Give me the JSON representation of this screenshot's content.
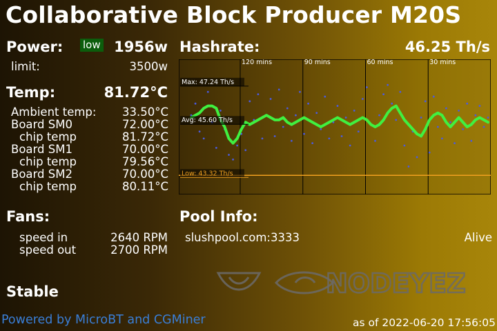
{
  "title": "Collaborative Block Producer M20S",
  "power": {
    "label": "Power:",
    "badge": "low",
    "value": "1956w",
    "limit_label": "limit:",
    "limit_value": "3500w"
  },
  "temp": {
    "label": "Temp:",
    "value": "81.72°C",
    "rows": [
      {
        "label": "Ambient temp:",
        "value": "33.50°C",
        "indent": false
      },
      {
        "label": "Board SM0",
        "value": "72.00°C",
        "indent": false
      },
      {
        "label": "chip temp",
        "value": "81.72°C",
        "indent": true
      },
      {
        "label": "Board SM1",
        "value": "70.00°C",
        "indent": false
      },
      {
        "label": "chip temp",
        "value": "79.56°C",
        "indent": true
      },
      {
        "label": "Board SM2",
        "value": "70.00°C",
        "indent": false
      },
      {
        "label": "chip temp",
        "value": "80.11°C",
        "indent": true
      }
    ]
  },
  "fans": {
    "label": "Fans:",
    "speed_in_label": "speed in",
    "speed_in_value": "2640 RPM",
    "speed_out_label": "speed out",
    "speed_out_value": "2700 RPM"
  },
  "status": "Stable",
  "hashrate": {
    "label": "Hashrate:",
    "value": "46.25 Th/s"
  },
  "pool": {
    "label": "Pool Info:",
    "url": "slushpool.com:3333",
    "status": "Alive"
  },
  "footer": {
    "powered_by": "Powered by MicroBT and CGMiner",
    "as_of": "as of 2022-06-20 17:56:05"
  },
  "watermark": {
    "text": "NODEYEZ",
    "icon": "eye-logo-icon"
  },
  "colors": {
    "avg_line": "#40f040",
    "points": "#4a5ae0",
    "low_line": "#f0a020",
    "low_badge": "#0c5d0c",
    "footer_link": "#3a7fd8"
  },
  "chart_data": {
    "type": "scatter",
    "title": "",
    "xlabel": "",
    "ylabel": "",
    "x_tick_labels": [
      "120 mins",
      "90 mins",
      "60 mins",
      "30 mins"
    ],
    "ylim": [
      42.5,
      48.3
    ],
    "max_label": "Max: 47.24 Th/s",
    "avg_label": "Avg: 45.60 Th/s",
    "low_label": "Low: 43.32 Th/s",
    "max": 47.24,
    "avg": 45.6,
    "low": 43.32,
    "smoothed_series": [
      45.8,
      45.9,
      46.0,
      46.2,
      46.3,
      46.3,
      46.2,
      45.7,
      45.4,
      44.9,
      44.7,
      44.9,
      45.3,
      45.6,
      45.5,
      45.6,
      45.7,
      45.8,
      45.9,
      45.8,
      45.7,
      45.7,
      45.8,
      45.6,
      45.5,
      45.6,
      45.7,
      45.8,
      45.7,
      45.6,
      45.5,
      45.4,
      45.5,
      45.6,
      45.7,
      45.8,
      45.7,
      45.6,
      45.5,
      45.6,
      45.7,
      45.8,
      45.7,
      45.5,
      45.4,
      45.5,
      45.7,
      46.0,
      46.2,
      46.3,
      46.0,
      45.7,
      45.5,
      45.3,
      45.1,
      45.0,
      45.3,
      45.7,
      45.9,
      46.0,
      45.9,
      45.6,
      45.4,
      45.6,
      45.8,
      45.6,
      45.4,
      45.5,
      45.7,
      45.8,
      45.7,
      45.6
    ],
    "scatter_points": [
      [
        0,
        45.9
      ],
      [
        1,
        46.4
      ],
      [
        2,
        45.2
      ],
      [
        3,
        44.9
      ],
      [
        4,
        46.9
      ],
      [
        5,
        45.6
      ],
      [
        6,
        44.5
      ],
      [
        7,
        46.1
      ],
      [
        8,
        45.3
      ],
      [
        9,
        44.2
      ],
      [
        10,
        44.0
      ],
      [
        11,
        44.6
      ],
      [
        12,
        45.1
      ],
      [
        13,
        44.4
      ],
      [
        14,
        46.5
      ],
      [
        15,
        45.7
      ],
      [
        16,
        46.8
      ],
      [
        17,
        44.9
      ],
      [
        18,
        45.9
      ],
      [
        19,
        46.6
      ],
      [
        20,
        45.0
      ],
      [
        21,
        47.0
      ],
      [
        22,
        45.4
      ],
      [
        23,
        46.2
      ],
      [
        24,
        44.8
      ],
      [
        25,
        45.9
      ],
      [
        26,
        46.9
      ],
      [
        27,
        45.1
      ],
      [
        28,
        46.4
      ],
      [
        29,
        44.7
      ],
      [
        30,
        46.0
      ],
      [
        31,
        45.3
      ],
      [
        32,
        46.7
      ],
      [
        33,
        44.9
      ],
      [
        34,
        45.6
      ],
      [
        35,
        46.3
      ],
      [
        36,
        45.0
      ],
      [
        37,
        45.8
      ],
      [
        38,
        44.6
      ],
      [
        39,
        46.1
      ],
      [
        40,
        45.2
      ],
      [
        41,
        46.6
      ],
      [
        42,
        47.1
      ],
      [
        43,
        45.5
      ],
      [
        44,
        44.8
      ],
      [
        45,
        45.9
      ],
      [
        46,
        46.8
      ],
      [
        47,
        47.2
      ],
      [
        48,
        46.4
      ],
      [
        49,
        45.7
      ],
      [
        50,
        46.9
      ],
      [
        51,
        44.6
      ],
      [
        52,
        43.7
      ],
      [
        53,
        45.2
      ],
      [
        54,
        44.1
      ],
      [
        55,
        45.8
      ],
      [
        56,
        46.5
      ],
      [
        57,
        44.3
      ],
      [
        58,
        46.7
      ],
      [
        59,
        45.4
      ],
      [
        60,
        44.9
      ],
      [
        61,
        46.2
      ],
      [
        62,
        45.6
      ],
      [
        63,
        44.7
      ],
      [
        64,
        46.1
      ],
      [
        65,
        45.3
      ],
      [
        66,
        46.4
      ],
      [
        67,
        44.8
      ],
      [
        68,
        45.9
      ],
      [
        69,
        46.3
      ],
      [
        70,
        45.4
      ],
      [
        71,
        45.8
      ]
    ]
  }
}
